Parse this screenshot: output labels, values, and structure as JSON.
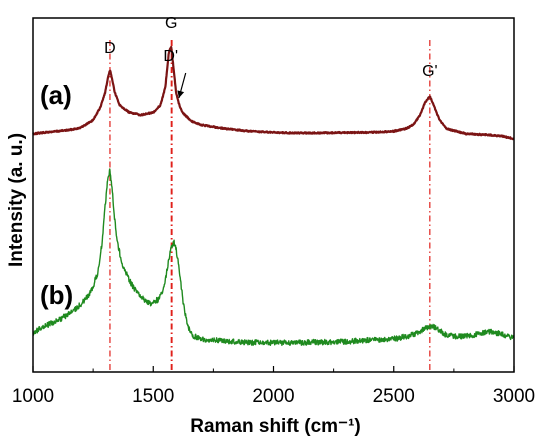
{
  "chart_data": {
    "type": "line",
    "xlabel": "Raman shift (cm⁻¹)",
    "ylabel": "Intensity (a. u.)",
    "xlim": [
      1000,
      3000
    ],
    "xticks": [
      1000,
      1500,
      2000,
      2500,
      3000
    ],
    "y_ticks_shown": false,
    "grid": false,
    "legend": "none",
    "reference_lines_x": [
      1320,
      1575,
      1578,
      2650
    ],
    "reference_line_color": "#e0201b",
    "peak_labels": [
      {
        "text": "D",
        "x": 1320
      },
      {
        "text": "G",
        "x": 1575
      },
      {
        "text": "D'",
        "x": 1610
      },
      {
        "text": "G'",
        "x": 2650
      }
    ],
    "series": [
      {
        "label": "(a)",
        "color": "#7b1414",
        "points": [
          [
            1000,
            0.805
          ],
          [
            1050,
            0.81
          ],
          [
            1100,
            0.815
          ],
          [
            1150,
            0.82
          ],
          [
            1200,
            0.83
          ],
          [
            1250,
            0.86
          ],
          [
            1280,
            0.91
          ],
          [
            1300,
            0.97
          ],
          [
            1310,
            1.02
          ],
          [
            1320,
            1.06
          ],
          [
            1330,
            1.02
          ],
          [
            1340,
            0.97
          ],
          [
            1360,
            0.92
          ],
          [
            1400,
            0.89
          ],
          [
            1450,
            0.88
          ],
          [
            1500,
            0.89
          ],
          [
            1530,
            0.92
          ],
          [
            1550,
            0.99
          ],
          [
            1565,
            1.13
          ],
          [
            1575,
            1.155
          ],
          [
            1585,
            1.06
          ],
          [
            1595,
            0.97
          ],
          [
            1605,
            0.93
          ],
          [
            1620,
            0.89
          ],
          [
            1660,
            0.855
          ],
          [
            1700,
            0.84
          ],
          [
            1800,
            0.825
          ],
          [
            1900,
            0.815
          ],
          [
            2000,
            0.81
          ],
          [
            2100,
            0.808
          ],
          [
            2200,
            0.808
          ],
          [
            2300,
            0.81
          ],
          [
            2400,
            0.81
          ],
          [
            2500,
            0.815
          ],
          [
            2550,
            0.825
          ],
          [
            2580,
            0.84
          ],
          [
            2610,
            0.88
          ],
          [
            2630,
            0.93
          ],
          [
            2650,
            0.955
          ],
          [
            2670,
            0.91
          ],
          [
            2690,
            0.86
          ],
          [
            2720,
            0.825
          ],
          [
            2800,
            0.805
          ],
          [
            2900,
            0.8
          ],
          [
            2950,
            0.795
          ],
          [
            3000,
            0.785
          ]
        ]
      },
      {
        "label": "(b)",
        "color": "#1f8a1f",
        "points": [
          [
            1000,
            0.05
          ],
          [
            1050,
            0.08
          ],
          [
            1100,
            0.1
          ],
          [
            1150,
            0.13
          ],
          [
            1200,
            0.17
          ],
          [
            1240,
            0.22
          ],
          [
            1270,
            0.3
          ],
          [
            1290,
            0.45
          ],
          [
            1300,
            0.58
          ],
          [
            1310,
            0.69
          ],
          [
            1320,
            0.73
          ],
          [
            1330,
            0.64
          ],
          [
            1340,
            0.52
          ],
          [
            1350,
            0.43
          ],
          [
            1370,
            0.34
          ],
          [
            1400,
            0.27
          ],
          [
            1430,
            0.22
          ],
          [
            1460,
            0.19
          ],
          [
            1490,
            0.17
          ],
          [
            1520,
            0.19
          ],
          [
            1545,
            0.24
          ],
          [
            1560,
            0.33
          ],
          [
            1575,
            0.41
          ],
          [
            1585,
            0.43
          ],
          [
            1595,
            0.4
          ],
          [
            1610,
            0.3
          ],
          [
            1625,
            0.17
          ],
          [
            1640,
            0.09
          ],
          [
            1660,
            0.04
          ],
          [
            1700,
            0.025
          ],
          [
            1800,
            0.015
          ],
          [
            1900,
            0.01
          ],
          [
            2000,
            0.01
          ],
          [
            2100,
            0.01
          ],
          [
            2200,
            0.012
          ],
          [
            2300,
            0.015
          ],
          [
            2400,
            0.02
          ],
          [
            2500,
            0.025
          ],
          [
            2550,
            0.035
          ],
          [
            2600,
            0.05
          ],
          [
            2640,
            0.075
          ],
          [
            2660,
            0.08
          ],
          [
            2690,
            0.06
          ],
          [
            2720,
            0.04
          ],
          [
            2780,
            0.035
          ],
          [
            2850,
            0.045
          ],
          [
            2900,
            0.055
          ],
          [
            2950,
            0.045
          ],
          [
            3000,
            0.03
          ]
        ]
      }
    ]
  }
}
